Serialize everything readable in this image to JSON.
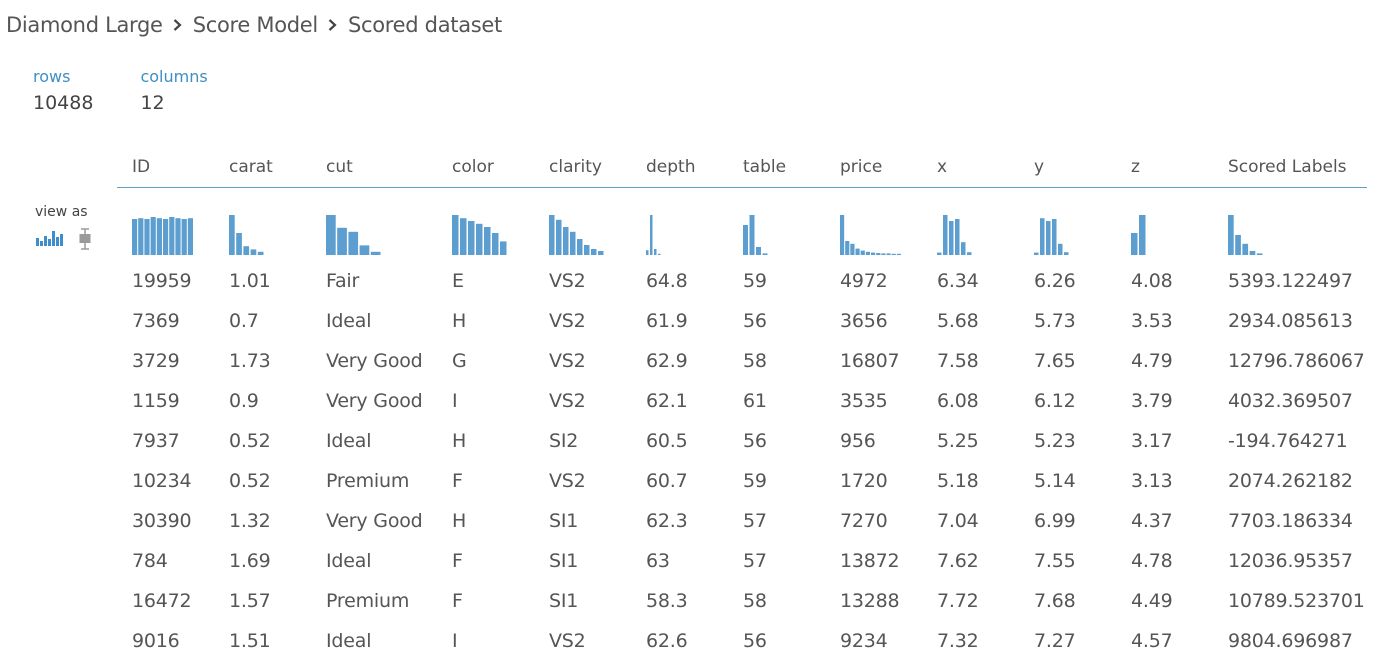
{
  "breadcrumb": [
    "Diamond Large",
    "Score Model",
    "Scored dataset"
  ],
  "stats": [
    {
      "label": "rows",
      "value": "10488"
    },
    {
      "label": "columns",
      "value": "12"
    }
  ],
  "view_as_label": "view as",
  "view_modes": [
    "histogram",
    "boxplot"
  ],
  "colors": {
    "accent": "#3e8fc4",
    "bar": "#5b9ecf",
    "header_line": "#5fa4c4"
  },
  "columns": [
    "ID",
    "carat",
    "cut",
    "color",
    "clarity",
    "depth",
    "table",
    "price",
    "x",
    "y",
    "z",
    "Scored Labels"
  ],
  "histograms": [
    [
      0.9,
      0.92,
      0.9,
      0.95,
      0.92,
      0.9,
      0.95,
      0.92,
      0.9,
      0.92
    ],
    [
      1.0,
      0.55,
      0.22,
      0.14,
      0.08
    ],
    [
      1.0,
      0.68,
      0.58,
      0.24,
      0.08
    ],
    [
      1.0,
      0.92,
      0.85,
      0.78,
      0.7,
      0.55,
      0.34
    ],
    [
      1.0,
      0.88,
      0.7,
      0.58,
      0.4,
      0.25,
      0.15,
      0.1
    ],
    [
      0.12,
      1.0,
      0.15,
      0.03
    ],
    [
      0.75,
      1.0,
      0.2,
      0.04
    ],
    [
      1.0,
      0.35,
      0.28,
      0.16,
      0.11,
      0.08,
      0.06,
      0.05,
      0.04,
      0.04,
      0.03,
      0.03
    ],
    [
      0.06,
      1.0,
      0.85,
      0.9,
      0.32,
      0.07
    ],
    [
      0.06,
      0.92,
      0.85,
      0.9,
      0.28,
      0.07
    ],
    [
      0.55,
      1.0
    ],
    [
      1.0,
      0.5,
      0.28,
      0.1,
      0.04
    ]
  ],
  "rows": [
    [
      "19959",
      "1.01",
      "Fair",
      "E",
      "VS2",
      "64.8",
      "59",
      "4972",
      "6.34",
      "6.26",
      "4.08",
      "5393.122497"
    ],
    [
      "7369",
      "0.7",
      "Ideal",
      "H",
      "VS2",
      "61.9",
      "56",
      "3656",
      "5.68",
      "5.73",
      "3.53",
      "2934.085613"
    ],
    [
      "3729",
      "1.73",
      "Very Good",
      "G",
      "VS2",
      "62.9",
      "58",
      "16807",
      "7.58",
      "7.65",
      "4.79",
      "12796.786067"
    ],
    [
      "1159",
      "0.9",
      "Very Good",
      "I",
      "VS2",
      "62.1",
      "61",
      "3535",
      "6.08",
      "6.12",
      "3.79",
      "4032.369507"
    ],
    [
      "7937",
      "0.52",
      "Ideal",
      "H",
      "SI2",
      "60.5",
      "56",
      "956",
      "5.25",
      "5.23",
      "3.17",
      "-194.764271"
    ],
    [
      "10234",
      "0.52",
      "Premium",
      "F",
      "VS2",
      "60.7",
      "59",
      "1720",
      "5.18",
      "5.14",
      "3.13",
      "2074.262182"
    ],
    [
      "30390",
      "1.32",
      "Very Good",
      "H",
      "SI1",
      "62.3",
      "57",
      "7270",
      "7.04",
      "6.99",
      "4.37",
      "7703.186334"
    ],
    [
      "784",
      "1.69",
      "Ideal",
      "F",
      "SI1",
      "63",
      "57",
      "13872",
      "7.62",
      "7.55",
      "4.78",
      "12036.95357"
    ],
    [
      "16472",
      "1.57",
      "Premium",
      "F",
      "SI1",
      "58.3",
      "58",
      "13288",
      "7.72",
      "7.68",
      "4.49",
      "10789.523701"
    ],
    [
      "9016",
      "1.51",
      "Ideal",
      "I",
      "VS2",
      "62.6",
      "56",
      "9234",
      "7.32",
      "7.27",
      "4.57",
      "9804.696987"
    ]
  ]
}
